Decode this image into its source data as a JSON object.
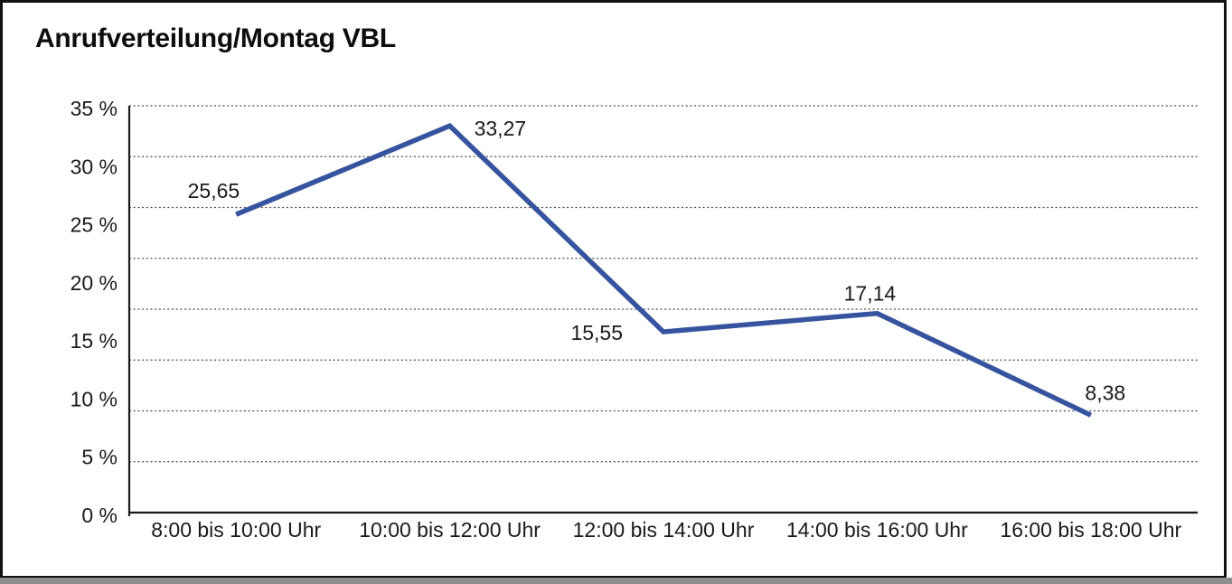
{
  "title": "Anrufverteilung/Montag VBL",
  "chart_data": {
    "type": "line",
    "title": "Anrufverteilung/Montag VBL",
    "categories": [
      "8:00 bis 10:00 Uhr",
      "10:00 bis 12:00 Uhr",
      "12:00 bis 14:00 Uhr",
      "14:00 bis 16:00 Uhr",
      "16:00 bis 18:00 Uhr"
    ],
    "series": [
      {
        "name": "Anrufverteilung Montag VBL",
        "values": [
          25.65,
          33.27,
          15.55,
          17.14,
          8.38
        ],
        "value_labels": [
          "25,65",
          "33,27",
          "15,55",
          "17,14",
          "8,38"
        ]
      }
    ],
    "y_ticks": [
      {
        "value": 35,
        "label": "35 %"
      },
      {
        "value": 30,
        "label": "30 %"
      },
      {
        "value": 25,
        "label": "25 %"
      },
      {
        "value": 20,
        "label": "20 %"
      },
      {
        "value": 15,
        "label": "15 %"
      },
      {
        "value": 10,
        "label": "10 %"
      },
      {
        "value": 5,
        "label": "5 %"
      },
      {
        "value": 0,
        "label": "0 %"
      }
    ],
    "ylim": [
      0,
      35
    ],
    "unit": "%",
    "grid": "horizontal-dotted",
    "legend": "none",
    "line_color": "#35539f",
    "axis_color": "#1a1a1a",
    "grid_color": "#4a4a4a",
    "text_color": "#1a1a1a"
  }
}
